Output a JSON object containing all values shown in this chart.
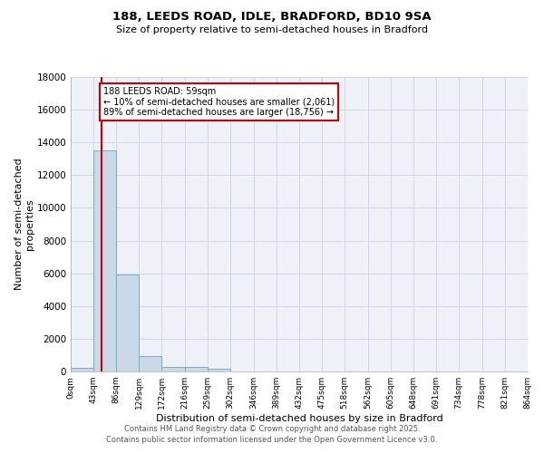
{
  "title": "188, LEEDS ROAD, IDLE, BRADFORD, BD10 9SA",
  "subtitle": "Size of property relative to semi-detached houses in Bradford",
  "xlabel": "Distribution of semi-detached houses by size in Bradford",
  "ylabel": "Number of semi-detached\nproperties",
  "property_size": 59,
  "annotation_title": "188 LEEDS ROAD: 59sqm",
  "annotation_line1": "← 10% of semi-detached houses are smaller (2,061)",
  "annotation_line2": "89% of semi-detached houses are larger (18,756) →",
  "footer1": "Contains HM Land Registry data © Crown copyright and database right 2025.",
  "footer2": "Contains public sector information licensed under the Open Government Licence v3.0.",
  "bin_edges": [
    0,
    43,
    86,
    129,
    172,
    216,
    259,
    302,
    346,
    389,
    432,
    475,
    518,
    562,
    605,
    648,
    691,
    734,
    778,
    821,
    864
  ],
  "bin_counts": [
    200,
    13500,
    5900,
    950,
    300,
    280,
    150,
    0,
    0,
    0,
    0,
    0,
    0,
    0,
    0,
    0,
    0,
    0,
    0,
    0
  ],
  "bar_color": "#c9d9e8",
  "bar_edge_color": "#7aaac8",
  "red_line_color": "#cc0000",
  "annotation_box_color": "#cc0000",
  "grid_color": "#d0d8e8",
  "ylim": [
    0,
    18000
  ],
  "yticks": [
    0,
    2000,
    4000,
    6000,
    8000,
    10000,
    12000,
    14000,
    16000,
    18000
  ],
  "bg_color": "#eef2f8"
}
